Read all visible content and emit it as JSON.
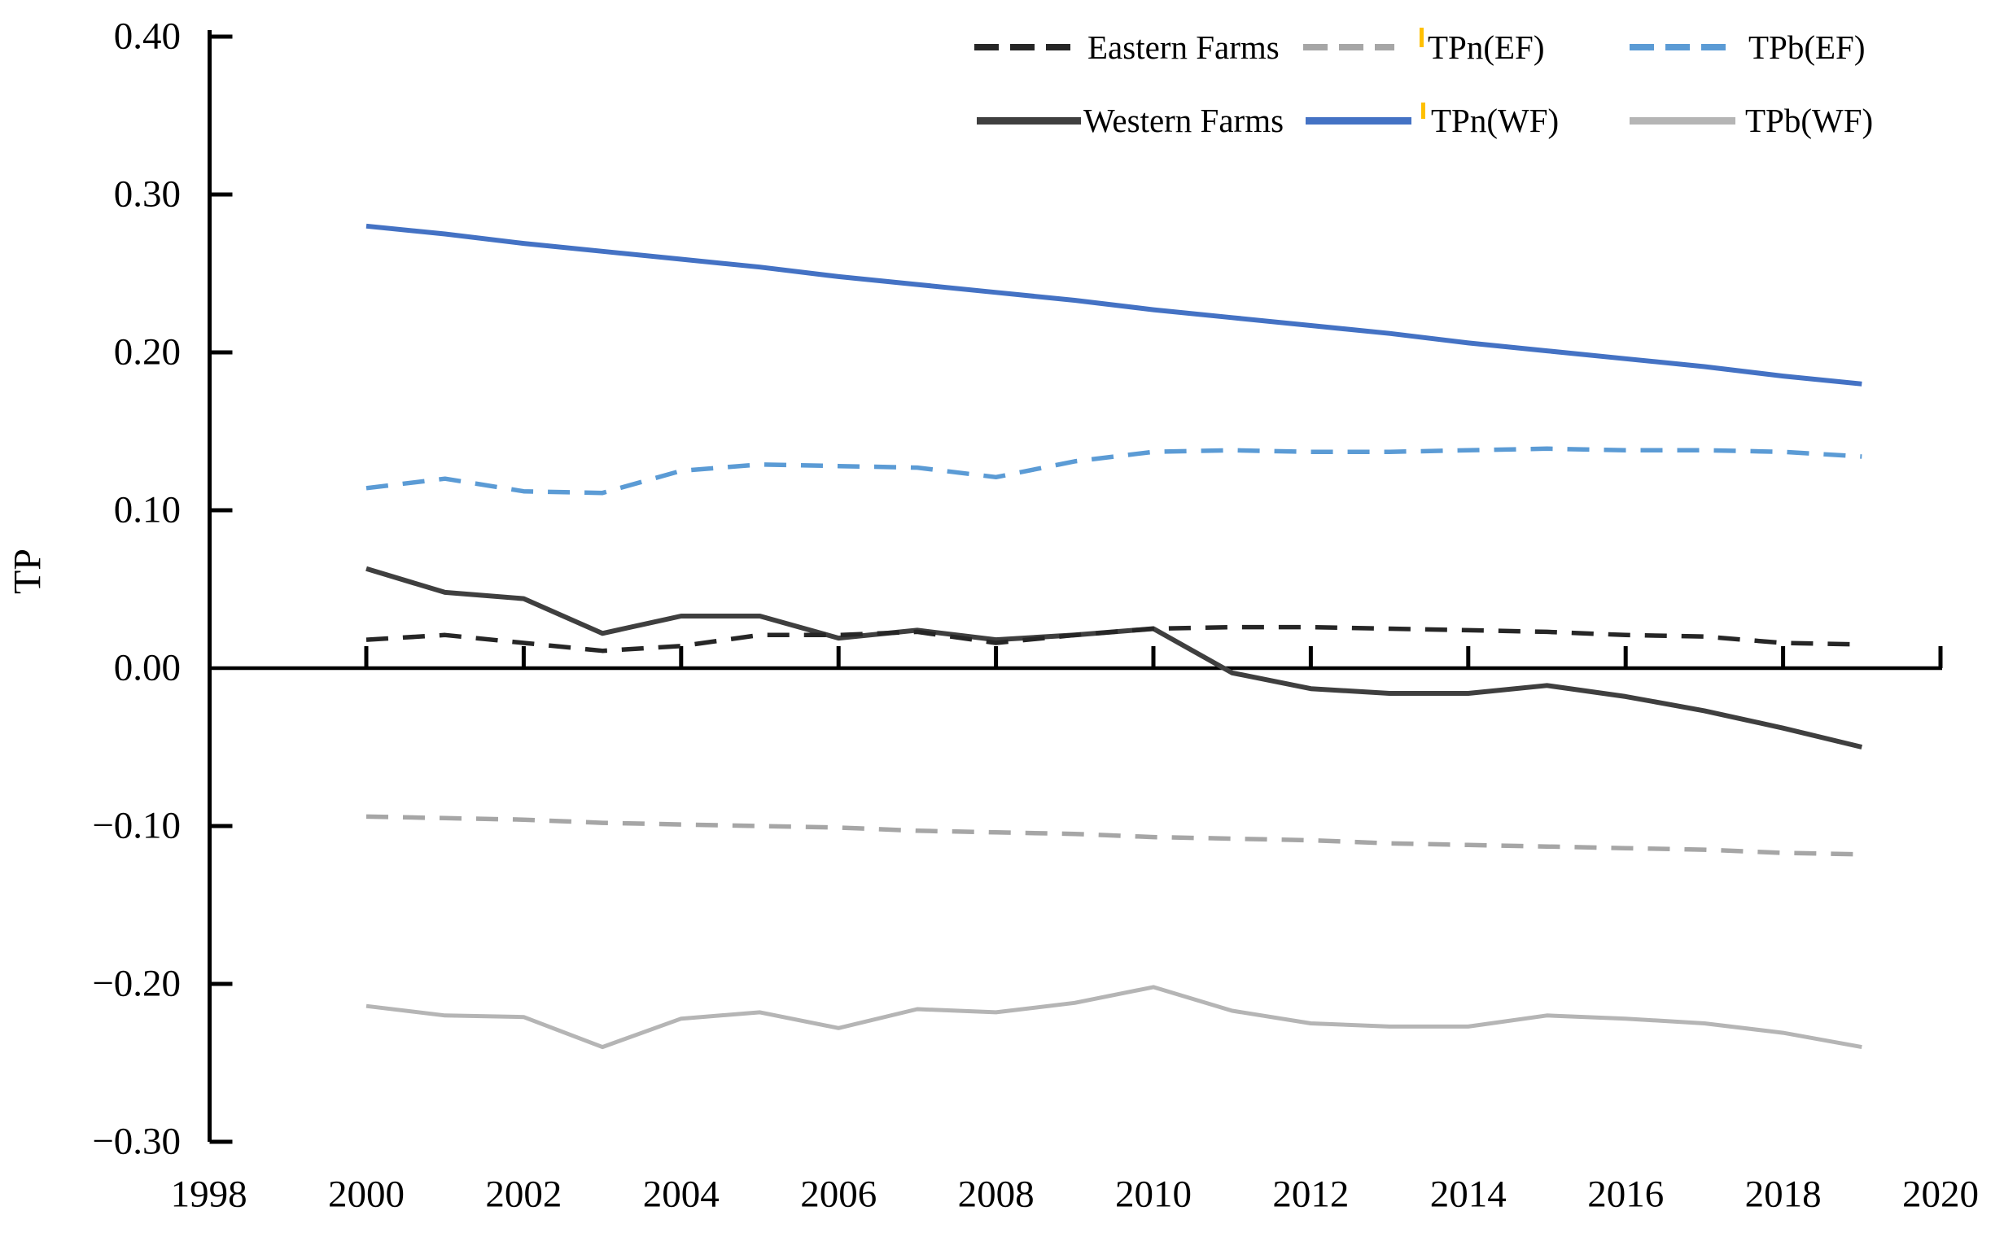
{
  "chart_data": {
    "type": "line",
    "title": "",
    "ylabel": "TP",
    "xlabel": "",
    "x": [
      2000,
      2001,
      2002,
      2003,
      2004,
      2005,
      2006,
      2007,
      2008,
      2009,
      2010,
      2011,
      2012,
      2013,
      2014,
      2015,
      2016,
      2017,
      2018,
      2019
    ],
    "xlim": [
      1998,
      2020
    ],
    "ylim": [
      -0.3,
      0.4
    ],
    "grid": "off",
    "legend_position": "top-right inside, 2 rows x 3 columns",
    "xtick_labels": [
      "1998",
      "2000",
      "2002",
      "2004",
      "2006",
      "2008",
      "2010",
      "2012",
      "2014",
      "2016",
      "2018",
      "2020"
    ],
    "xtick_values": [
      1998,
      2000,
      2002,
      2004,
      2006,
      2008,
      2010,
      2012,
      2014,
      2016,
      2018,
      2020
    ],
    "ytick_labels": [
      "0.40",
      "0.30",
      "0.20",
      "0.10",
      "0.00",
      "−0.10",
      "−0.20",
      "−0.30"
    ],
    "ytick_values": [
      0.4,
      0.3,
      0.2,
      0.1,
      0.0,
      -0.1,
      -0.2,
      -0.3
    ],
    "series": [
      {
        "name": "TPn(WF)",
        "style": "solid",
        "color": "#4472c4",
        "values": [
          0.28,
          0.275,
          0.269,
          0.264,
          0.259,
          0.254,
          0.248,
          0.243,
          0.238,
          0.233,
          0.227,
          0.222,
          0.217,
          0.212,
          0.206,
          0.201,
          0.196,
          0.191,
          0.185,
          0.18
        ]
      },
      {
        "name": "TPb(EF)",
        "style": "dashed",
        "color": "#5b9bd5",
        "values": [
          0.114,
          0.12,
          0.112,
          0.111,
          0.125,
          0.129,
          0.128,
          0.127,
          0.121,
          0.131,
          0.137,
          0.138,
          0.137,
          0.137,
          0.138,
          0.139,
          0.138,
          0.138,
          0.137,
          0.134
        ]
      },
      {
        "name": "TPb(WF)",
        "style": "solid",
        "color": "#b5b5b5",
        "values": [
          -0.214,
          -0.22,
          -0.221,
          -0.24,
          -0.222,
          -0.218,
          -0.228,
          -0.216,
          -0.218,
          -0.212,
          -0.202,
          -0.217,
          -0.225,
          -0.227,
          -0.227,
          -0.22,
          -0.222,
          -0.225,
          -0.231,
          -0.24
        ]
      },
      {
        "name": "TPn(EF)",
        "style": "dashed",
        "color": "#a6a6a6",
        "values": [
          -0.094,
          -0.095,
          -0.096,
          -0.098,
          -0.099,
          -0.1,
          -0.101,
          -0.103,
          -0.104,
          -0.105,
          -0.107,
          -0.108,
          -0.109,
          -0.111,
          -0.112,
          -0.113,
          -0.114,
          -0.115,
          -0.117,
          -0.118
        ]
      },
      {
        "name": "Western Farms",
        "style": "solid",
        "color": "#3f3f3f",
        "values": [
          0.063,
          0.048,
          0.044,
          0.022,
          0.033,
          0.033,
          0.019,
          0.024,
          0.018,
          0.021,
          0.025,
          -0.003,
          -0.013,
          -0.016,
          -0.016,
          -0.011,
          -0.018,
          -0.027,
          -0.038,
          -0.05
        ]
      },
      {
        "name": "Eastern Farms",
        "style": "dashed",
        "color": "#262626",
        "values": [
          0.018,
          0.021,
          0.016,
          0.011,
          0.014,
          0.021,
          0.021,
          0.023,
          0.016,
          0.021,
          0.025,
          0.026,
          0.026,
          0.025,
          0.024,
          0.023,
          0.021,
          0.02,
          0.016,
          0.015
        ]
      }
    ],
    "legend_rows": [
      [
        "Eastern Farms",
        "TPn(EF)",
        "TPb(EF)"
      ],
      [
        "Western Farms",
        "TPn(WF)",
        "TPb(WF)"
      ]
    ]
  },
  "decorations": {
    "stray_mark_color": "#ffc000"
  }
}
